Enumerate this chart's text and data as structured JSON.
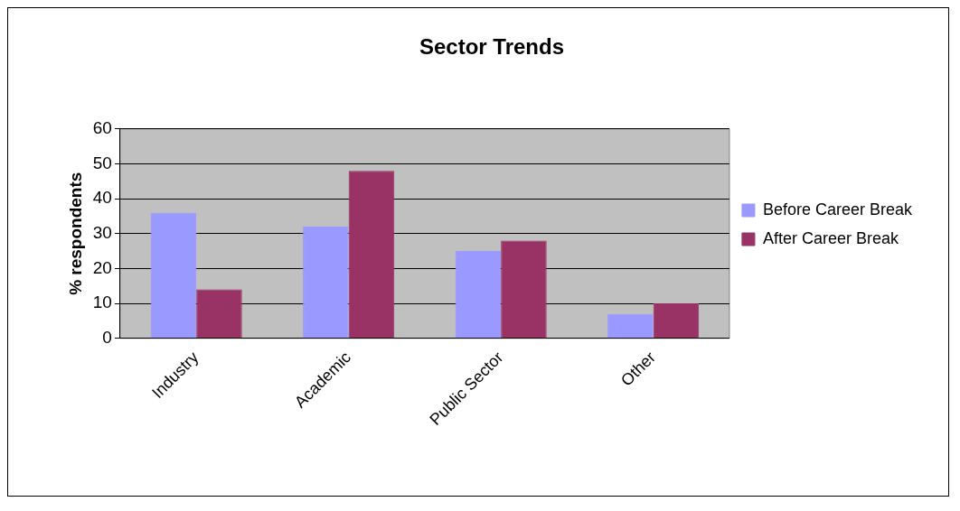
{
  "chart_data": {
    "type": "bar",
    "title": "Sector Trends",
    "ylabel": "% respondents",
    "categories": [
      "Industry",
      "Academic",
      "Public Sector",
      "Other"
    ],
    "series": [
      {
        "name": "Before Career Break",
        "color": "#9999ff",
        "values": [
          36,
          32,
          25,
          7
        ]
      },
      {
        "name": "After Career Break",
        "color": "#993366",
        "values": [
          14,
          48,
          28,
          10
        ]
      }
    ],
    "ylim": [
      0,
      60
    ],
    "yticks": [
      0,
      10,
      20,
      30,
      40,
      50,
      60
    ],
    "grid": "y",
    "legend": "right"
  }
}
